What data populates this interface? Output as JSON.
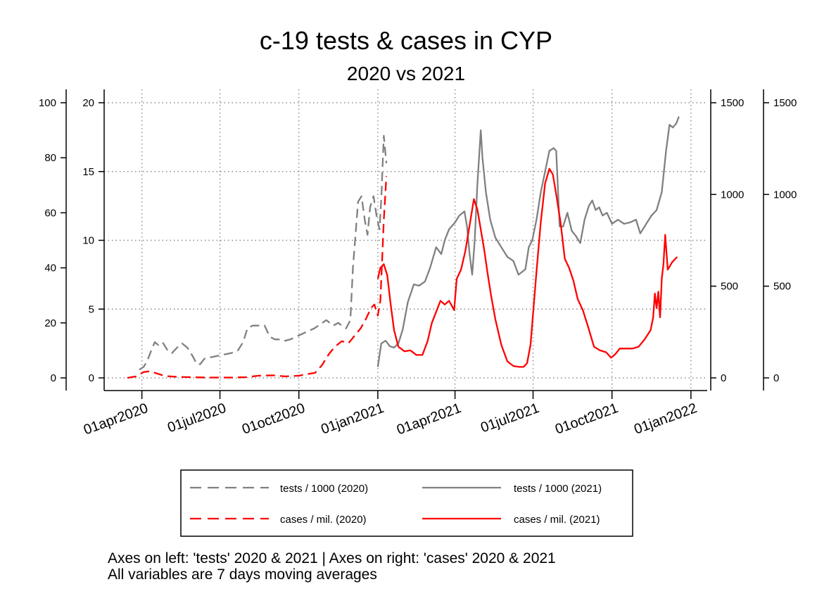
{
  "chart_data": {
    "type": "line",
    "title": "c-19 tests & cases in CYP",
    "subtitle": "2020 vs 2021",
    "notes": [
      "Axes on left: 'tests' 2020 & 2021 | Axes on right: 'cases' 2020 & 2021",
      "All variables are 7 days moving averages"
    ],
    "x_axis": {
      "type": "date",
      "range": [
        "2020-02-17",
        "2022-01-20"
      ],
      "ticks": [
        "2020-04-01",
        "2020-07-01",
        "2020-10-01",
        "2021-01-01",
        "2021-04-01",
        "2021-07-01",
        "2021-10-01",
        "2022-01-01"
      ],
      "tick_labels": [
        "01apr2020",
        "01jul2020",
        "01oct2020",
        "01jan2021",
        "01apr2021",
        "01jul2021",
        "01oct2021",
        "01jan2022"
      ]
    },
    "y_axes": {
      "left_outer": {
        "series": "tests / 1000 (2020)",
        "range": [
          0,
          100
        ],
        "ticks": [
          "0",
          "20",
          "40",
          "60",
          "80",
          "100"
        ]
      },
      "left_inner": {
        "series": "tests / 1000 (2021)",
        "range": [
          0,
          20
        ],
        "ticks": [
          "0",
          "5",
          "10",
          "15",
          "20"
        ]
      },
      "right_inner": {
        "series": "cases / mil. (2020)",
        "range": [
          0,
          1500
        ],
        "ticks": [
          "0",
          "500",
          "1000",
          "1500"
        ]
      },
      "right_outer": {
        "series": "cases / mil. (2021)",
        "range": [
          0,
          1500
        ],
        "ticks": [
          "0",
          "500",
          "1000",
          "1500"
        ]
      }
    },
    "grid": true,
    "legend": {
      "position": "bottom",
      "columns": 2
    },
    "series": [
      {
        "name": "tests / 1000 (2020)",
        "color": "#808080",
        "dash": "dashed",
        "axis": "left_outer",
        "points": [
          [
            "2020-03-29",
            3
          ],
          [
            "2020-04-03",
            4
          ],
          [
            "2020-04-07",
            6
          ],
          [
            "2020-04-12",
            10
          ],
          [
            "2020-04-16",
            13
          ],
          [
            "2020-04-20",
            12
          ],
          [
            "2020-04-25",
            13
          ],
          [
            "2020-05-01",
            10
          ],
          [
            "2020-05-06",
            9
          ],
          [
            "2020-05-12",
            11
          ],
          [
            "2020-05-18",
            12.5
          ],
          [
            "2020-05-24",
            11
          ],
          [
            "2020-05-30",
            8
          ],
          [
            "2020-06-04",
            5
          ],
          [
            "2020-06-08",
            5
          ],
          [
            "2020-06-13",
            7
          ],
          [
            "2020-06-20",
            7.5
          ],
          [
            "2020-06-28",
            8
          ],
          [
            "2020-07-06",
            8.5
          ],
          [
            "2020-07-14",
            9
          ],
          [
            "2020-07-22",
            10
          ],
          [
            "2020-07-28",
            13
          ],
          [
            "2020-08-02",
            18
          ],
          [
            "2020-08-08",
            19
          ],
          [
            "2020-08-15",
            19
          ],
          [
            "2020-08-22",
            19
          ],
          [
            "2020-08-28",
            15
          ],
          [
            "2020-09-03",
            14
          ],
          [
            "2020-09-09",
            14
          ],
          [
            "2020-09-15",
            13.5
          ],
          [
            "2020-09-21",
            14
          ],
          [
            "2020-09-28",
            15
          ],
          [
            "2020-10-05",
            16
          ],
          [
            "2020-10-12",
            17
          ],
          [
            "2020-10-19",
            18
          ],
          [
            "2020-10-26",
            19.5
          ],
          [
            "2020-11-02",
            21
          ],
          [
            "2020-11-06",
            20
          ],
          [
            "2020-11-10",
            19
          ],
          [
            "2020-11-16",
            20
          ],
          [
            "2020-11-20",
            19
          ],
          [
            "2020-11-25",
            18
          ],
          [
            "2020-11-30",
            21
          ],
          [
            "2020-12-03",
            40
          ],
          [
            "2020-12-06",
            52
          ],
          [
            "2020-12-09",
            64
          ],
          [
            "2020-12-13",
            66
          ],
          [
            "2020-12-17",
            57
          ],
          [
            "2020-12-20",
            52
          ],
          [
            "2020-12-23",
            62
          ],
          [
            "2020-12-27",
            66
          ],
          [
            "2020-12-31",
            58
          ],
          [
            "2021-01-03",
            54
          ],
          [
            "2021-01-05",
            65
          ],
          [
            "2021-01-08",
            88
          ],
          [
            "2021-01-11",
            78
          ]
        ]
      },
      {
        "name": "cases / mil. (2020)",
        "color": "#ff0000",
        "dash": "dashed",
        "axis": "right_inner",
        "points": [
          [
            "2020-03-15",
            0
          ],
          [
            "2020-03-25",
            8
          ],
          [
            "2020-04-03",
            32
          ],
          [
            "2020-04-10",
            36
          ],
          [
            "2020-04-18",
            25
          ],
          [
            "2020-04-28",
            10
          ],
          [
            "2020-05-15",
            5
          ],
          [
            "2020-06-15",
            2
          ],
          [
            "2020-07-15",
            2
          ],
          [
            "2020-08-01",
            4
          ],
          [
            "2020-08-15",
            12
          ],
          [
            "2020-09-01",
            14
          ],
          [
            "2020-09-15",
            8
          ],
          [
            "2020-10-01",
            12
          ],
          [
            "2020-10-10",
            20
          ],
          [
            "2020-10-20",
            28
          ],
          [
            "2020-10-28",
            70
          ],
          [
            "2020-11-05",
            130
          ],
          [
            "2020-11-12",
            170
          ],
          [
            "2020-11-20",
            200
          ],
          [
            "2020-11-28",
            190
          ],
          [
            "2020-12-05",
            230
          ],
          [
            "2020-12-12",
            270
          ],
          [
            "2020-12-18",
            320
          ],
          [
            "2020-12-24",
            380
          ],
          [
            "2020-12-28",
            400
          ],
          [
            "2021-01-01",
            340
          ],
          [
            "2021-01-04",
            420
          ],
          [
            "2021-01-06",
            640
          ],
          [
            "2021-01-08",
            860
          ],
          [
            "2021-01-11",
            1100
          ]
        ]
      },
      {
        "name": "tests / 1000 (2021)",
        "color": "#808080",
        "dash": "solid",
        "axis": "left_inner",
        "points": [
          [
            "2021-01-01",
            0.8
          ],
          [
            "2021-01-05",
            2.5
          ],
          [
            "2021-01-10",
            2.7
          ],
          [
            "2021-01-15",
            2.3
          ],
          [
            "2021-01-20",
            2.2
          ],
          [
            "2021-01-25",
            2.5
          ],
          [
            "2021-01-30",
            3.5
          ],
          [
            "2021-02-05",
            5.5
          ],
          [
            "2021-02-12",
            6.8
          ],
          [
            "2021-02-18",
            6.7
          ],
          [
            "2021-02-25",
            7
          ],
          [
            "2021-03-03",
            8
          ],
          [
            "2021-03-10",
            9.5
          ],
          [
            "2021-03-16",
            9.0
          ],
          [
            "2021-03-20",
            10.0
          ],
          [
            "2021-03-25",
            10.8
          ],
          [
            "2021-04-01",
            11.3
          ],
          [
            "2021-04-06",
            11.8
          ],
          [
            "2021-04-12",
            12.1
          ],
          [
            "2021-04-15",
            11.0
          ],
          [
            "2021-04-18",
            9.0
          ],
          [
            "2021-04-21",
            7.5
          ],
          [
            "2021-04-24",
            10
          ],
          [
            "2021-04-27",
            14
          ],
          [
            "2021-05-01",
            18.0
          ],
          [
            "2021-05-03",
            16.0
          ],
          [
            "2021-05-07",
            13.5
          ],
          [
            "2021-05-12",
            11.5
          ],
          [
            "2021-05-18",
            10.2
          ],
          [
            "2021-05-25",
            9.5
          ],
          [
            "2021-06-01",
            8.8
          ],
          [
            "2021-06-08",
            8.5
          ],
          [
            "2021-06-14",
            7.5
          ],
          [
            "2021-06-18",
            7.7
          ],
          [
            "2021-06-22",
            7.9
          ],
          [
            "2021-06-26",
            9.5
          ],
          [
            "2021-06-30",
            10.0
          ],
          [
            "2021-07-05",
            11.5
          ],
          [
            "2021-07-10",
            13.5
          ],
          [
            "2021-07-15",
            15.0
          ],
          [
            "2021-07-20",
            16.5
          ],
          [
            "2021-07-25",
            16.7
          ],
          [
            "2021-07-28",
            16.5
          ],
          [
            "2021-08-01",
            11.0
          ],
          [
            "2021-08-05",
            11.0
          ],
          [
            "2021-08-10",
            12.0
          ],
          [
            "2021-08-15",
            10.7
          ],
          [
            "2021-08-20",
            10.3
          ],
          [
            "2021-08-25",
            9.8
          ],
          [
            "2021-08-30",
            11.5
          ],
          [
            "2021-09-04",
            12.5
          ],
          [
            "2021-09-08",
            12.9
          ],
          [
            "2021-09-12",
            12.2
          ],
          [
            "2021-09-16",
            12.4
          ],
          [
            "2021-09-20",
            11.8
          ],
          [
            "2021-09-25",
            12.0
          ],
          [
            "2021-10-01",
            11.2
          ],
          [
            "2021-10-08",
            11.5
          ],
          [
            "2021-10-15",
            11.2
          ],
          [
            "2021-10-22",
            11.3
          ],
          [
            "2021-10-29",
            11.5
          ],
          [
            "2021-11-03",
            10.5
          ],
          [
            "2021-11-10",
            11.2
          ],
          [
            "2021-11-16",
            11.8
          ],
          [
            "2021-11-22",
            12.2
          ],
          [
            "2021-11-28",
            13.5
          ],
          [
            "2021-12-03",
            16.5
          ],
          [
            "2021-12-07",
            18.4
          ],
          [
            "2021-12-11",
            18.2
          ],
          [
            "2021-12-15",
            18.5
          ],
          [
            "2021-12-18",
            19.0
          ]
        ]
      },
      {
        "name": "cases / mil. (2021)",
        "color": "#ff0000",
        "dash": "solid",
        "axis": "right_outer",
        "points": [
          [
            "2021-01-01",
            540
          ],
          [
            "2021-01-04",
            600
          ],
          [
            "2021-01-08",
            620
          ],
          [
            "2021-01-12",
            560
          ],
          [
            "2021-01-16",
            400
          ],
          [
            "2021-01-20",
            260
          ],
          [
            "2021-01-25",
            170
          ],
          [
            "2021-02-01",
            145
          ],
          [
            "2021-02-08",
            150
          ],
          [
            "2021-02-15",
            125
          ],
          [
            "2021-02-22",
            125
          ],
          [
            "2021-02-28",
            200
          ],
          [
            "2021-03-05",
            300
          ],
          [
            "2021-03-10",
            360
          ],
          [
            "2021-03-15",
            420
          ],
          [
            "2021-03-20",
            400
          ],
          [
            "2021-03-25",
            420
          ],
          [
            "2021-03-31",
            370
          ],
          [
            "2021-04-03",
            540
          ],
          [
            "2021-04-08",
            590
          ],
          [
            "2021-04-13",
            690
          ],
          [
            "2021-04-18",
            830
          ],
          [
            "2021-04-23",
            975
          ],
          [
            "2021-04-27",
            920
          ],
          [
            "2021-05-01",
            810
          ],
          [
            "2021-05-05",
            700
          ],
          [
            "2021-05-09",
            570
          ],
          [
            "2021-05-13",
            450
          ],
          [
            "2021-05-18",
            320
          ],
          [
            "2021-05-25",
            180
          ],
          [
            "2021-06-01",
            90
          ],
          [
            "2021-06-08",
            65
          ],
          [
            "2021-06-15",
            60
          ],
          [
            "2021-06-20",
            60
          ],
          [
            "2021-06-24",
            80
          ],
          [
            "2021-06-28",
            180
          ],
          [
            "2021-07-01",
            350
          ],
          [
            "2021-07-05",
            580
          ],
          [
            "2021-07-10",
            850
          ],
          [
            "2021-07-15",
            1060
          ],
          [
            "2021-07-20",
            1140
          ],
          [
            "2021-07-24",
            1110
          ],
          [
            "2021-07-28",
            1000
          ],
          [
            "2021-08-02",
            850
          ],
          [
            "2021-08-07",
            650
          ],
          [
            "2021-08-12",
            600
          ],
          [
            "2021-08-17",
            530
          ],
          [
            "2021-08-22",
            430
          ],
          [
            "2021-08-28",
            370
          ],
          [
            "2021-09-03",
            280
          ],
          [
            "2021-09-10",
            170
          ],
          [
            "2021-09-17",
            150
          ],
          [
            "2021-09-24",
            140
          ],
          [
            "2021-09-30",
            110
          ],
          [
            "2021-10-05",
            130
          ],
          [
            "2021-10-10",
            160
          ],
          [
            "2021-10-18",
            160
          ],
          [
            "2021-10-25",
            160
          ],
          [
            "2021-11-01",
            170
          ],
          [
            "2021-11-08",
            210
          ],
          [
            "2021-11-15",
            260
          ],
          [
            "2021-11-18",
            330
          ],
          [
            "2021-11-20",
            460
          ],
          [
            "2021-11-22",
            380
          ],
          [
            "2021-11-24",
            470
          ],
          [
            "2021-11-26",
            330
          ],
          [
            "2021-11-28",
            540
          ],
          [
            "2021-11-30",
            620
          ],
          [
            "2021-12-02",
            780
          ],
          [
            "2021-12-05",
            590
          ],
          [
            "2021-12-10",
            630
          ],
          [
            "2021-12-16",
            660
          ]
        ]
      }
    ]
  }
}
